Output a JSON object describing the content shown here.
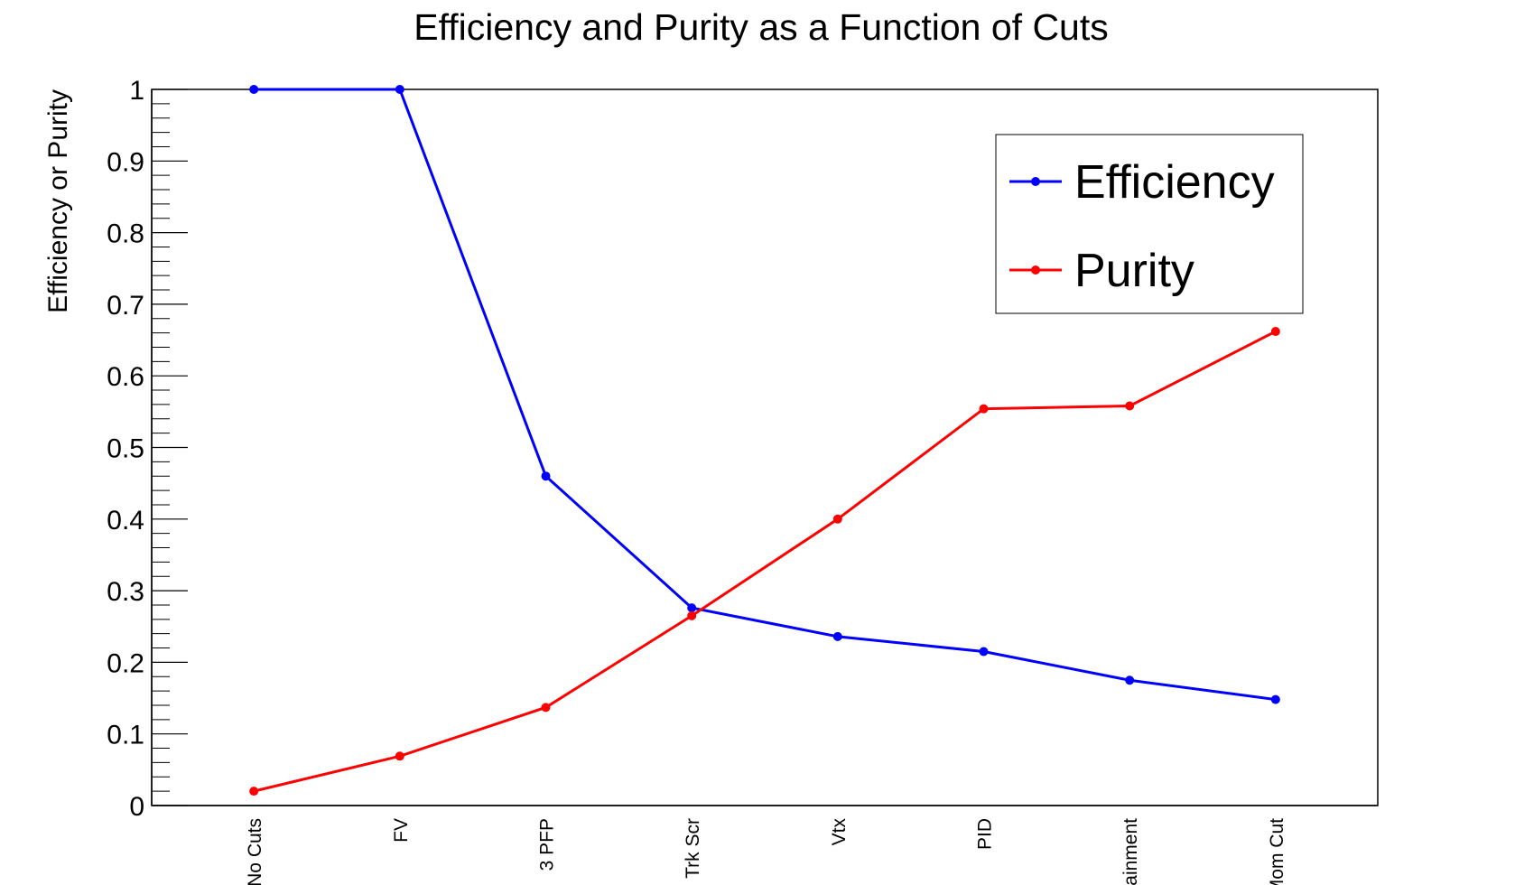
{
  "chart_data": {
    "type": "line",
    "title": "Efficiency and Purity as a Function of Cuts",
    "xlabel": "",
    "ylabel": "Efficiency or Purity",
    "categories": [
      "No Cuts",
      "FV",
      "3 PFP",
      "Trk Scr",
      "Vtx",
      "PID",
      "Containment",
      "Mom Cut"
    ],
    "ylim": [
      0,
      1
    ],
    "y_ticks": [
      "0",
      "0.1",
      "0.2",
      "0.3",
      "0.4",
      "0.5",
      "0.6",
      "0.7",
      "0.8",
      "0.9",
      "1"
    ],
    "grid": false,
    "legend": "top-right",
    "series": [
      {
        "name": "Efficiency",
        "color": "#0000ff",
        "values": [
          1.0,
          1.0,
          0.46,
          0.276,
          0.236,
          0.215,
          0.175,
          0.148
        ]
      },
      {
        "name": "Purity",
        "color": "#ff0000",
        "values": [
          0.02,
          0.069,
          0.137,
          0.265,
          0.4,
          0.554,
          0.558,
          0.662
        ]
      }
    ]
  }
}
